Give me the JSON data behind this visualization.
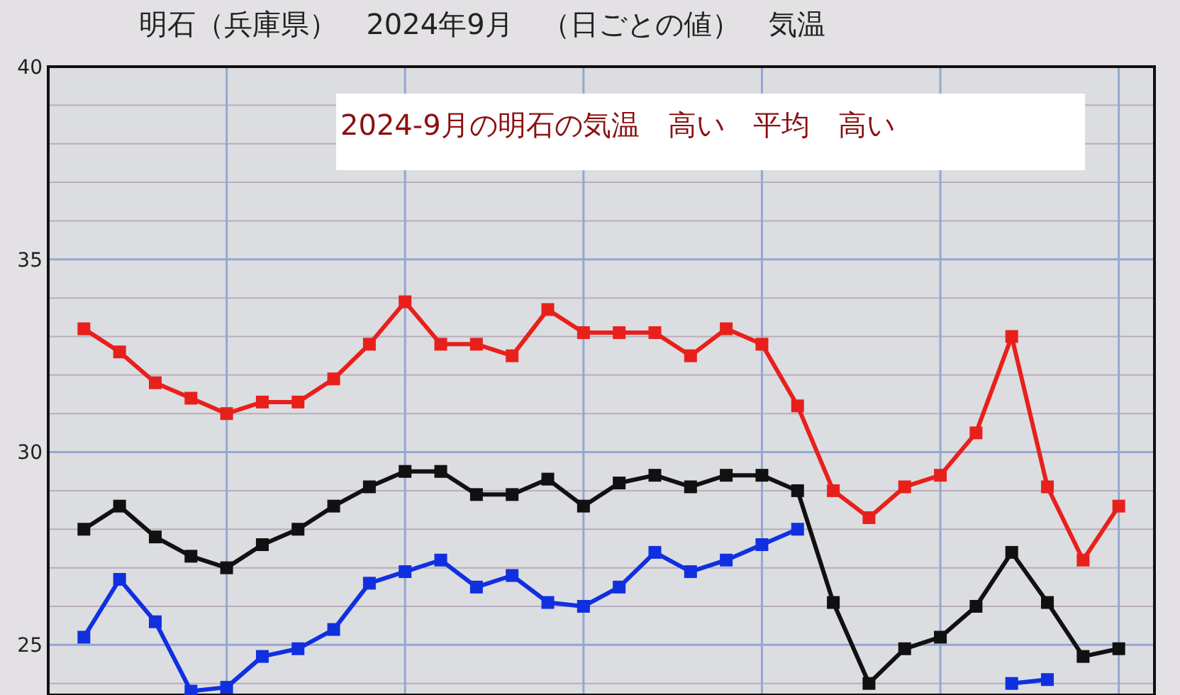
{
  "chart_data": {
    "type": "line",
    "title": "明石（兵庫県）　2024年9月　（日ごとの値）　気温",
    "annotations": [
      "2024-9月の明石の気温　高い　平均　高い"
    ],
    "categories": [
      null,
      null,
      null,
      null,
      null,
      null,
      null,
      null,
      null,
      null,
      null,
      null,
      null,
      null,
      null,
      null,
      null,
      null,
      null,
      null,
      null,
      null,
      null,
      null,
      null,
      null,
      null,
      null,
      null,
      null
    ],
    "ylim": [
      23.7,
      40
    ],
    "yticks": [
      {
        "value": 24,
        "label": null
      },
      25,
      {
        "value": 26,
        "label": null
      },
      {
        "value": 27,
        "label": null
      },
      {
        "value": 28,
        "label": null
      },
      {
        "value": 29,
        "label": null
      },
      30,
      {
        "value": 31,
        "label": null
      },
      {
        "value": 32,
        "label": null
      },
      {
        "value": 33,
        "label": null
      },
      {
        "value": 34,
        "label": null
      },
      35,
      {
        "value": 36,
        "label": null
      },
      {
        "value": 37,
        "label": null
      },
      {
        "value": 38,
        "label": null
      },
      {
        "value": 39,
        "label": null
      },
      40
    ],
    "tick_labels": "y",
    "grid": true,
    "marker": "square",
    "line_style": "solid",
    "series": [
      {
        "color": "#e8201c",
        "values": [
          33.2,
          32.6,
          31.8,
          31.4,
          31.0,
          31.3,
          31.3,
          31.9,
          32.8,
          33.9,
          32.8,
          32.8,
          32.5,
          33.7,
          33.1,
          33.1,
          33.1,
          32.5,
          33.2,
          32.8,
          31.2,
          29.0,
          28.3,
          29.1,
          29.4,
          30.5,
          33.0,
          29.1,
          27.2,
          28.6
        ]
      },
      {
        "color": "#111111",
        "values": [
          28.0,
          28.6,
          27.8,
          27.3,
          27.0,
          27.6,
          28.0,
          28.6,
          29.1,
          29.5,
          29.5,
          28.9,
          28.9,
          29.3,
          28.6,
          29.2,
          29.4,
          29.1,
          29.4,
          29.4,
          29.0,
          26.1,
          24.0,
          24.9,
          25.2,
          26.0,
          27.4,
          26.1,
          24.7,
          24.9
        ]
      },
      {
        "color": "#1030e0",
        "values": [
          25.2,
          26.7,
          25.6,
          23.8,
          23.9,
          24.7,
          24.9,
          25.4,
          26.6,
          26.9,
          27.2,
          26.5,
          26.8,
          26.1,
          26.0,
          26.5,
          27.4,
          26.9,
          27.2,
          27.6,
          28.0,
          null,
          null,
          null,
          null,
          null,
          24.0,
          24.1,
          null,
          null
        ]
      }
    ]
  }
}
